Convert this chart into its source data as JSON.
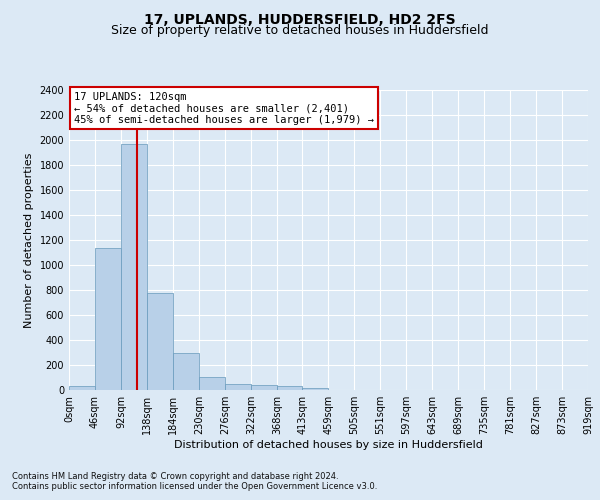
{
  "title": "17, UPLANDS, HUDDERSFIELD, HD2 2FS",
  "subtitle": "Size of property relative to detached houses in Huddersfield",
  "xlabel": "Distribution of detached houses by size in Huddersfield",
  "ylabel": "Number of detached properties",
  "footnote1": "Contains HM Land Registry data © Crown copyright and database right 2024.",
  "footnote2": "Contains public sector information licensed under the Open Government Licence v3.0.",
  "bin_edges": [
    0,
    46,
    92,
    138,
    184,
    230,
    276,
    322,
    368,
    413,
    459,
    505,
    551,
    597,
    643,
    689,
    735,
    781,
    827,
    873,
    919
  ],
  "bar_values": [
    35,
    1140,
    1970,
    775,
    300,
    105,
    50,
    40,
    30,
    20,
    0,
    0,
    0,
    0,
    0,
    0,
    0,
    0,
    0,
    0
  ],
  "bar_color": "#b8d0e8",
  "bar_edge_color": "#6699bb",
  "property_line_x": 120,
  "property_line_color": "#cc0000",
  "annotation_text": "17 UPLANDS: 120sqm\n← 54% of detached houses are smaller (2,401)\n45% of semi-detached houses are larger (1,979) →",
  "annotation_box_edgecolor": "#cc0000",
  "ylim_max": 2400,
  "yticks": [
    0,
    200,
    400,
    600,
    800,
    1000,
    1200,
    1400,
    1600,
    1800,
    2000,
    2200,
    2400
  ],
  "bg_color": "#dce9f5",
  "grid_color": "#ffffff",
  "title_fontsize": 10,
  "subtitle_fontsize": 9,
  "axis_label_fontsize": 8,
  "tick_fontsize": 7,
  "annotation_fontsize": 7.5,
  "footnote_fontsize": 6
}
